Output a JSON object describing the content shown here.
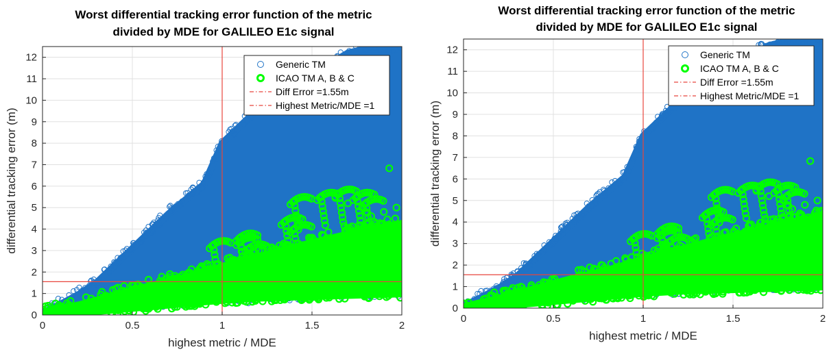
{
  "colors": {
    "generic": "#1f73c6",
    "icao": "#00ff00",
    "refline": "#e8453c",
    "grid": "#e0e0e0"
  },
  "chart_data": [
    {
      "type": "scatter",
      "title": "Worst differential tracking error function of the metric",
      "subtitle": "divided by MDE for GALILEO E1c signal",
      "xlabel": "highest metric / MDE",
      "ylabel": "differential tracking error (m)",
      "xlim": [
        0,
        2
      ],
      "ylim": [
        0,
        12.5
      ],
      "xticks": [
        "0",
        "0.5",
        "1",
        "1.5",
        "2"
      ],
      "yticks": [
        "0",
        "1",
        "2",
        "3",
        "4",
        "5",
        "6",
        "7",
        "8",
        "9",
        "10",
        "11",
        "12"
      ],
      "grid": true,
      "legend_position": "top-right",
      "legend": [
        "Generic TM",
        "ICAO TM A, B & C",
        "Diff Error =1.55m",
        "Highest Metric/MDE =1"
      ],
      "hline": 1.55,
      "vline": 1,
      "series": [
        {
          "name": "Generic TM",
          "envelope_x": [
            0,
            0.1,
            0.2,
            0.3,
            0.4,
            0.5,
            0.6,
            0.7,
            0.8,
            0.9,
            1.0,
            1.2,
            1.4,
            1.6,
            1.7,
            1.8,
            2.0
          ],
          "envelope_upper": [
            0.1,
            0.5,
            0.95,
            1.5,
            2.3,
            3.1,
            3.9,
            4.7,
            5.4,
            6.1,
            8.0,
            9.6,
            10.8,
            11.7,
            12.2,
            12.4,
            12.4
          ],
          "envelope_lower": [
            0,
            0.02,
            0.1,
            0.25,
            0.4,
            0.5,
            0.55,
            0.6,
            0.65,
            0.7,
            0.75,
            0.8,
            0.9,
            1.0,
            1.0,
            1.05,
            1.1
          ]
        },
        {
          "name": "ICAO TM A, B & C",
          "envelope_x": [
            0,
            0.2,
            0.4,
            0.6,
            0.8,
            1.0,
            1.2,
            1.4,
            1.6,
            1.8,
            2.0
          ],
          "envelope_upper": [
            0.1,
            0.5,
            0.95,
            1.4,
            1.8,
            2.3,
            2.75,
            3.2,
            3.6,
            4.0,
            4.3
          ],
          "envelope_lower": [
            0,
            0.05,
            0.2,
            0.35,
            0.5,
            0.65,
            0.75,
            0.8,
            0.85,
            0.9,
            0.95
          ],
          "arcs": [
            {
              "x": 1.05,
              "y": 3.45
            },
            {
              "x": 1.2,
              "y": 3.6
            },
            {
              "x": 1.25,
              "y": 3.3
            },
            {
              "x": 1.45,
              "y": 4.55
            },
            {
              "x": 1.5,
              "y": 4.2
            },
            {
              "x": 1.5,
              "y": 5.5
            },
            {
              "x": 1.65,
              "y": 5.7
            },
            {
              "x": 1.75,
              "y": 5.85
            },
            {
              "x": 1.85,
              "y": 5.7
            },
            {
              "x": 1.9,
              "y": 5.4
            },
            {
              "x": 1.2,
              "y": 3.8
            }
          ],
          "outliers": [
            {
              "x": 1.68,
              "y": 4.15
            },
            {
              "x": 1.7,
              "y": 5.2
            },
            {
              "x": 1.78,
              "y": 5.0
            },
            {
              "x": 1.83,
              "y": 4.6
            },
            {
              "x": 1.8,
              "y": 4.8
            },
            {
              "x": 1.63,
              "y": 5.45
            },
            {
              "x": 1.9,
              "y": 4.8
            },
            {
              "x": 1.97,
              "y": 5.0
            },
            {
              "x": 1.93,
              "y": 6.83
            }
          ]
        },
        {
          "name": "Diff Error =1.55m",
          "y": 1.55
        },
        {
          "name": "Highest Metric/MDE =1",
          "x": 1
        }
      ]
    },
    {
      "type": "scatter",
      "title": "Worst differential tracking error function of the metric",
      "subtitle": "divided by MDE for GALILEO E1c signal",
      "xlabel": "highest metric / MDE",
      "ylabel": "differential tracking error (m)",
      "xlim": [
        0,
        2
      ],
      "ylim": [
        0,
        12.5
      ],
      "xticks": [
        "0",
        "0.5",
        "1",
        "1.5",
        "2"
      ],
      "yticks": [
        "0",
        "1",
        "2",
        "3",
        "4",
        "5",
        "6",
        "7",
        "8",
        "9",
        "10",
        "11",
        "12"
      ],
      "grid": true,
      "legend_position": "top-right",
      "legend": [
        "Generic TM",
        "ICAO TM A, B & C",
        "Diff Error =1.55m",
        "Highest Metric/MDE =1"
      ],
      "hline": 1.55,
      "vline": 1,
      "series": [
        {
          "name": "Generic TM",
          "envelope_x": [
            0,
            0.1,
            0.2,
            0.3,
            0.4,
            0.5,
            0.6,
            0.7,
            0.8,
            0.9,
            1.0,
            1.2,
            1.4,
            1.6,
            1.7,
            1.8,
            2.0
          ],
          "envelope_upper": [
            0.1,
            0.5,
            0.95,
            1.5,
            2.3,
            3.1,
            3.9,
            4.7,
            5.4,
            6.1,
            8.0,
            9.6,
            10.8,
            11.7,
            12.2,
            12.4,
            12.4
          ],
          "envelope_lower": [
            0,
            0.02,
            0.1,
            0.25,
            0.4,
            0.5,
            0.55,
            0.6,
            0.65,
            0.7,
            0.75,
            0.8,
            0.9,
            1.0,
            1.0,
            1.05,
            1.1
          ]
        },
        {
          "name": "ICAO TM A, B & C",
          "envelope_x": [
            0,
            0.2,
            0.4,
            0.6,
            0.8,
            1.0,
            1.2,
            1.4,
            1.6,
            1.8,
            2.0
          ],
          "envelope_upper": [
            0.1,
            0.5,
            0.95,
            1.4,
            1.8,
            2.3,
            2.75,
            3.2,
            3.6,
            4.0,
            4.3
          ],
          "envelope_lower": [
            0,
            0.05,
            0.2,
            0.35,
            0.5,
            0.65,
            0.75,
            0.8,
            0.85,
            0.9,
            0.95
          ],
          "arcs": [
            {
              "x": 1.05,
              "y": 3.45
            },
            {
              "x": 1.2,
              "y": 3.6
            },
            {
              "x": 1.25,
              "y": 3.3
            },
            {
              "x": 1.45,
              "y": 4.55
            },
            {
              "x": 1.5,
              "y": 4.2
            },
            {
              "x": 1.5,
              "y": 5.5
            },
            {
              "x": 1.65,
              "y": 5.7
            },
            {
              "x": 1.75,
              "y": 5.85
            },
            {
              "x": 1.85,
              "y": 5.7
            },
            {
              "x": 1.9,
              "y": 5.4
            },
            {
              "x": 1.2,
              "y": 3.8
            }
          ],
          "outliers": [
            {
              "x": 1.68,
              "y": 4.15
            },
            {
              "x": 1.7,
              "y": 5.2
            },
            {
              "x": 1.78,
              "y": 5.0
            },
            {
              "x": 1.83,
              "y": 4.6
            },
            {
              "x": 1.8,
              "y": 4.8
            },
            {
              "x": 1.63,
              "y": 5.45
            },
            {
              "x": 1.9,
              "y": 4.8
            },
            {
              "x": 1.97,
              "y": 5.0
            },
            {
              "x": 1.93,
              "y": 6.83
            }
          ]
        },
        {
          "name": "Diff Error =1.55m",
          "y": 1.55
        },
        {
          "name": "Highest Metric/MDE =1",
          "x": 1
        }
      ]
    }
  ]
}
